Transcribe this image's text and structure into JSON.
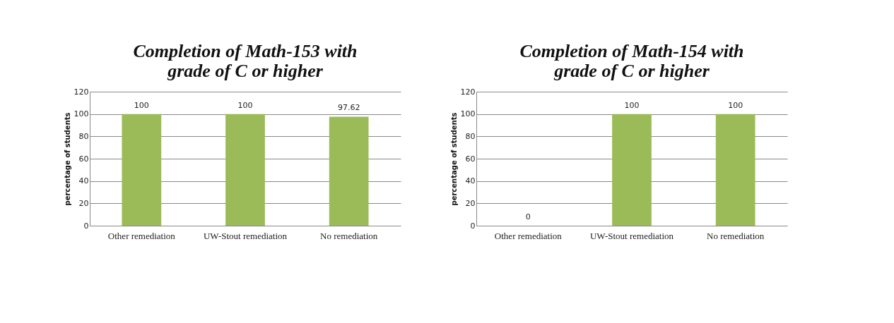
{
  "chart_data": [
    {
      "type": "bar",
      "title": "Completion of Math-153 with\ngrade of C or higher",
      "ylabel": "percentage of students",
      "categories": [
        "Other remediation",
        "UW-Stout remediation",
        "No remediation"
      ],
      "values": [
        100,
        100,
        97.62
      ],
      "color": "#9bbb59",
      "ylim": [
        0,
        120
      ],
      "yticks": [
        0,
        20,
        40,
        60,
        80,
        100,
        120
      ],
      "grid": "y",
      "data_labels": true
    },
    {
      "type": "bar",
      "title": "Completion of Math-154 with\ngrade of C or higher",
      "ylabel": "percentage of students",
      "categories": [
        "Other remediation",
        "UW-Stout remediation",
        "No remediation"
      ],
      "values": [
        0,
        100,
        100
      ],
      "color": "#9bbb59",
      "ylim": [
        0,
        120
      ],
      "yticks": [
        0,
        20,
        40,
        60,
        80,
        100,
        120
      ],
      "grid": "y",
      "data_labels": true
    }
  ]
}
